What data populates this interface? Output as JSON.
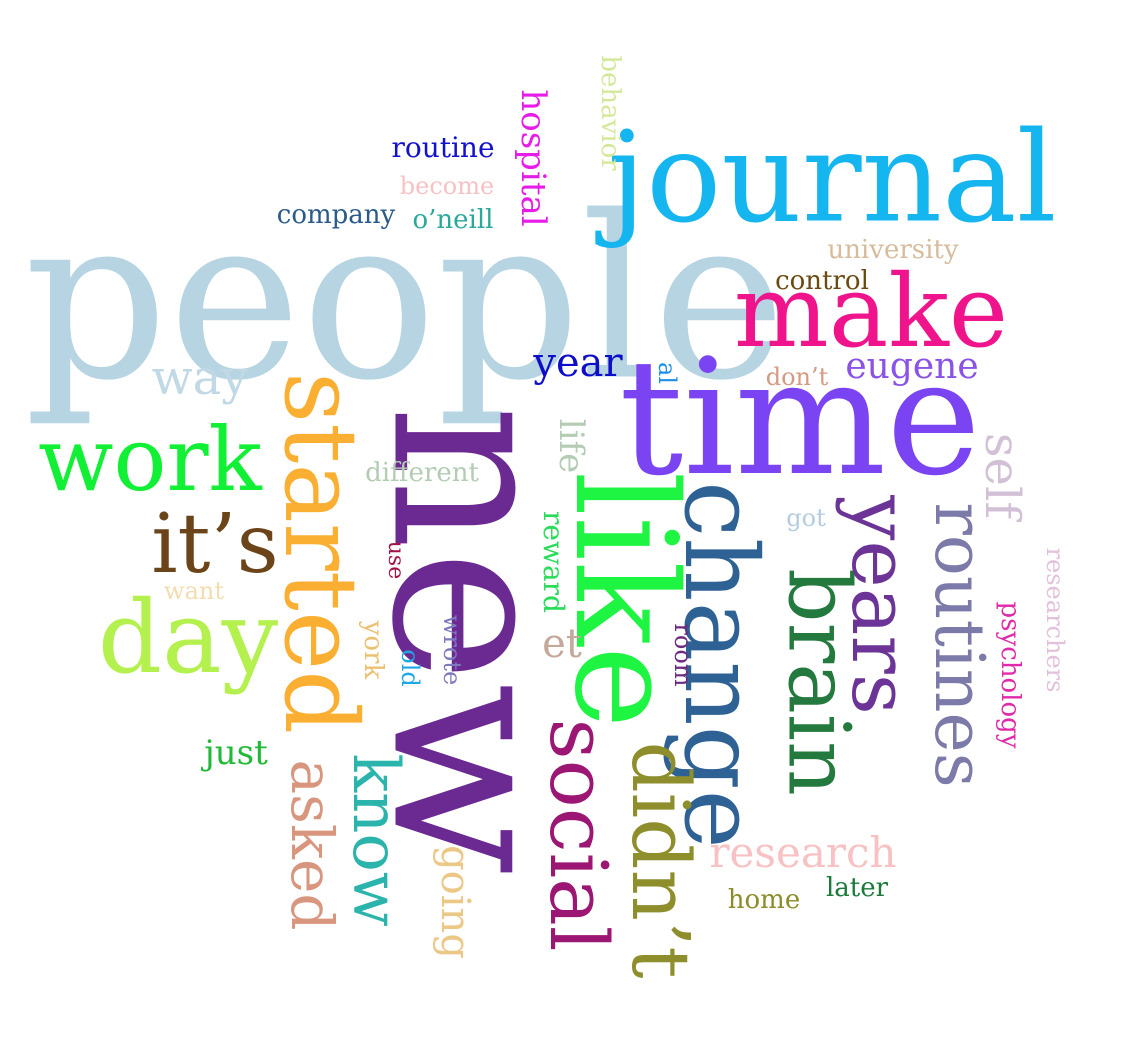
{
  "words": [
    {
      "id": "people",
      "text": "people",
      "color": "#B7D4E3",
      "orientation": "horizontal"
    },
    {
      "id": "new",
      "text": "new",
      "color": "#6B2A92",
      "orientation": "vertical"
    },
    {
      "id": "time",
      "text": "time",
      "color": "#7A44F2",
      "orientation": "horizontal"
    },
    {
      "id": "journal",
      "text": "journal",
      "color": "#15B5EF",
      "orientation": "horizontal"
    },
    {
      "id": "like",
      "text": "like",
      "color": "#1EF542",
      "orientation": "vertical"
    },
    {
      "id": "make",
      "text": "make",
      "color": "#F0148C",
      "orientation": "horizontal"
    },
    {
      "id": "started",
      "text": "started",
      "color": "#FBAF32",
      "orientation": "vertical"
    },
    {
      "id": "change",
      "text": "change",
      "color": "#2E6294",
      "orientation": "vertical"
    },
    {
      "id": "day",
      "text": "day",
      "color": "#B4F04E",
      "orientation": "horizontal"
    },
    {
      "id": "work",
      "text": "work",
      "color": "#12F036",
      "orientation": "horizontal"
    },
    {
      "id": "brain",
      "text": "brain",
      "color": "#247A3E",
      "orientation": "vertical"
    },
    {
      "id": "years",
      "text": "years",
      "color": "#6B3496",
      "orientation": "vertical"
    },
    {
      "id": "its",
      "text": "it’s",
      "color": "#6B4419",
      "orientation": "horizontal"
    },
    {
      "id": "social",
      "text": "social",
      "color": "#9C1674",
      "orientation": "vertical"
    },
    {
      "id": "didnt",
      "text": "didn’t",
      "color": "#8E8E2C",
      "orientation": "vertical"
    },
    {
      "id": "routines",
      "text": "routines",
      "color": "#7C7AA8",
      "orientation": "vertical"
    },
    {
      "id": "know",
      "text": "know",
      "color": "#2AB4AC",
      "orientation": "vertical"
    },
    {
      "id": "asked",
      "text": "asked",
      "color": "#D8967F",
      "orientation": "vertical"
    },
    {
      "id": "way",
      "text": "way",
      "color": "#C1D8E6",
      "orientation": "horizontal"
    },
    {
      "id": "research",
      "text": "research",
      "color": "#F8C2C4",
      "orientation": "horizontal"
    },
    {
      "id": "eugene",
      "text": "eugene",
      "color": "#8A52E6",
      "orientation": "horizontal"
    },
    {
      "id": "year",
      "text": "year",
      "color": "#0E0EC8",
      "orientation": "horizontal"
    },
    {
      "id": "self",
      "text": "self",
      "color": "#D2C0D6",
      "orientation": "vertical"
    },
    {
      "id": "going",
      "text": "going",
      "color": "#EBC886",
      "orientation": "vertical"
    },
    {
      "id": "journal_small_routine",
      "text": "routine",
      "color": "#1212CC",
      "orientation": "horizontal"
    },
    {
      "id": "company",
      "text": "company",
      "color": "#2A5A8A",
      "orientation": "horizontal"
    },
    {
      "id": "oneill",
      "text": "o’neill",
      "color": "#2AA89A",
      "orientation": "horizontal"
    },
    {
      "id": "become",
      "text": "become",
      "color": "#F6C2C4",
      "orientation": "horizontal"
    },
    {
      "id": "hospital",
      "text": "hospital",
      "color": "#E81CE8",
      "orientation": "vertical"
    },
    {
      "id": "behavior",
      "text": "behavior",
      "color": "#D4E89A",
      "orientation": "vertical"
    },
    {
      "id": "university",
      "text": "university",
      "color": "#D6BC9C",
      "orientation": "horizontal"
    },
    {
      "id": "control",
      "text": "control",
      "color": "#6A4A10",
      "orientation": "horizontal"
    },
    {
      "id": "dont",
      "text": "don’t",
      "color": "#D49A82",
      "orientation": "horizontal"
    },
    {
      "id": "al",
      "text": "al",
      "color": "#1E90E6",
      "orientation": "vertical"
    },
    {
      "id": "life",
      "text": "life",
      "color": "#B4CCB4",
      "orientation": "vertical"
    },
    {
      "id": "different",
      "text": "different",
      "color": "#B4CCB4",
      "orientation": "horizontal"
    },
    {
      "id": "got",
      "text": "got",
      "color": "#B4CCE0",
      "orientation": "horizontal"
    },
    {
      "id": "reward",
      "text": "reward",
      "color": "#2ADC5A",
      "orientation": "vertical"
    },
    {
      "id": "use",
      "text": "use",
      "color": "#A2124A",
      "orientation": "vertical"
    },
    {
      "id": "want",
      "text": "want",
      "color": "#F2DCB0",
      "orientation": "horizontal"
    },
    {
      "id": "york",
      "text": "york",
      "color": "#EBC070",
      "orientation": "vertical"
    },
    {
      "id": "wrote",
      "text": "wrote",
      "color": "#7E7ABF",
      "orientation": "vertical"
    },
    {
      "id": "old",
      "text": "old",
      "color": "#1EA8E6",
      "orientation": "vertical"
    },
    {
      "id": "room",
      "text": "room",
      "color": "#6E2A80",
      "orientation": "vertical"
    },
    {
      "id": "et",
      "text": "et",
      "color": "#C4A89A",
      "orientation": "horizontal"
    },
    {
      "id": "psychology",
      "text": "psychology",
      "color": "#E02AAA",
      "orientation": "vertical"
    },
    {
      "id": "researchers",
      "text": "researchers",
      "color": "#E2C2DA",
      "orientation": "vertical"
    },
    {
      "id": "just",
      "text": "just",
      "color": "#22B838",
      "orientation": "horizontal"
    },
    {
      "id": "home",
      "text": "home",
      "color": "#8C8C2A",
      "orientation": "horizontal"
    },
    {
      "id": "later",
      "text": "later",
      "color": "#1A7A3A",
      "orientation": "horizontal"
    }
  ]
}
